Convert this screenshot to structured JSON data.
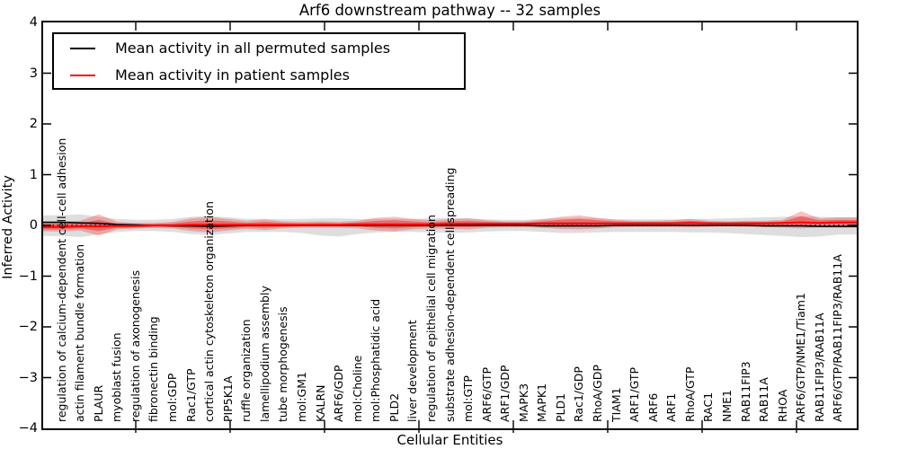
{
  "title": "Arf6 downstream pathway -- 32 samples",
  "legend": {
    "items": [
      {
        "label": "Mean activity in all permuted samples",
        "color": "#000000"
      },
      {
        "label": "Mean activity in patient samples",
        "color": "#ff0000"
      }
    ]
  },
  "axes": {
    "xlabel": "Cellular Entities",
    "ylabel": "Inferred Activity",
    "yticks": [
      "4",
      "3",
      "2",
      "1",
      "0",
      "−1",
      "−2",
      "−3",
      "−4"
    ]
  },
  "chart_data": {
    "type": "line",
    "title": "Arf6 downstream pathway -- 32 samples",
    "xlabel": "Cellular Entities",
    "ylabel": "Inferred Activity",
    "ylim": [
      -4,
      4
    ],
    "grid": false,
    "legend_position": "upper left",
    "zero_line": {
      "style": "dotted",
      "color": "#000000",
      "y": 0
    },
    "categories": [
      "regulation of calcium-dependent cell-cell adhesion",
      "actin filament bundle formation",
      "PLAUR",
      "myoblast fusion",
      "regulation of axonogenesis",
      "fibronectin binding",
      "mol:GDP",
      "Rac1/GTP",
      "cortical actin cytoskeleton organization",
      "PIP5K1A",
      "ruffle organization",
      "lamellipodium assembly",
      "tube morphogenesis",
      "mol:GM1",
      "KALRN",
      "ARF6/GDP",
      "mol:Choline",
      "mol:Phosphatidic acid",
      "PLD2",
      "liver development",
      "regulation of epithelial cell migration",
      "substrate adhesion-dependent cell spreading",
      "mol:GTP",
      "ARF6/GTP",
      "ARF1/GDP",
      "MAPK3",
      "MAPK1",
      "PLD1",
      "Rac1/GDP",
      "RhoA/GDP",
      "TIAM1",
      "ARF1/GTP",
      "ARF6",
      "ARF1",
      "RhoA/GTP",
      "RAC1",
      "NME1",
      "RAB11FIP3",
      "RAB11A",
      "RHOA",
      "ARF6/GTP/NME1/Tiam1",
      "RAB11FIP3/RAB11A",
      "ARF6/GTP/RAB11FIP3/RAB11A"
    ],
    "series": [
      {
        "name": "Mean activity in all permuted samples",
        "color": "#000000",
        "values": [
          0.06,
          0.05,
          0.04,
          0.02,
          0.01,
          0.0,
          -0.01,
          -0.01,
          -0.02,
          -0.01,
          0.0,
          0.0,
          0.0,
          0.0,
          0.0,
          0.0,
          0.0,
          0.0,
          0.0,
          0.0,
          0.0,
          0.0,
          0.0,
          0.0,
          0.0,
          0.0,
          -0.01,
          -0.01,
          -0.01,
          -0.01,
          0.0,
          0.0,
          0.0,
          0.0,
          0.0,
          0.0,
          0.0,
          0.0,
          -0.01,
          -0.01,
          -0.01,
          -0.02,
          -0.02
        ]
      },
      {
        "name": "Mean activity in patient samples",
        "color": "#ff0000",
        "values": [
          -0.03,
          -0.02,
          -0.02,
          -0.01,
          -0.01,
          0.0,
          0.0,
          0.01,
          0.01,
          0.01,
          0.01,
          0.01,
          0.01,
          0.01,
          0.01,
          0.01,
          0.02,
          0.02,
          0.02,
          0.02,
          0.02,
          0.03,
          0.03,
          0.03,
          0.03,
          0.03,
          0.04,
          0.04,
          0.04,
          0.04,
          0.04,
          0.04,
          0.04,
          0.04,
          0.05,
          0.04,
          0.04,
          0.04,
          0.04,
          0.05,
          0.06,
          0.05,
          0.06
        ]
      }
    ],
    "bands": [
      {
        "name": "permuted-samples-range",
        "color": "rgba(0,0,0,0.13)",
        "upper": [
          0.2,
          0.22,
          0.17,
          0.13,
          0.11,
          0.11,
          0.13,
          0.17,
          0.18,
          0.16,
          0.13,
          0.13,
          0.12,
          0.13,
          0.14,
          0.14,
          0.13,
          0.13,
          0.13,
          0.13,
          0.14,
          0.15,
          0.14,
          0.12,
          0.11,
          0.11,
          0.13,
          0.14,
          0.15,
          0.14,
          0.12,
          0.12,
          0.12,
          0.12,
          0.13,
          0.13,
          0.14,
          0.15,
          0.16,
          0.17,
          0.18,
          0.17,
          0.16
        ],
        "lower": [
          -0.21,
          -0.23,
          -0.18,
          -0.13,
          -0.11,
          -0.11,
          -0.13,
          -0.17,
          -0.19,
          -0.16,
          -0.13,
          -0.13,
          -0.13,
          -0.15,
          -0.2,
          -0.22,
          -0.17,
          -0.14,
          -0.13,
          -0.13,
          -0.14,
          -0.15,
          -0.14,
          -0.12,
          -0.11,
          -0.11,
          -0.13,
          -0.15,
          -0.15,
          -0.14,
          -0.13,
          -0.13,
          -0.13,
          -0.13,
          -0.14,
          -0.14,
          -0.15,
          -0.17,
          -0.19,
          -0.21,
          -0.23,
          -0.22,
          -0.18
        ]
      },
      {
        "name": "patient-samples-outer-range",
        "color": "rgba(255,0,0,0.25)",
        "upper": [
          0.08,
          0.09,
          0.22,
          0.07,
          0.05,
          0.05,
          0.07,
          0.14,
          0.17,
          0.13,
          0.09,
          0.12,
          0.08,
          0.07,
          0.08,
          0.07,
          0.09,
          0.15,
          0.17,
          0.13,
          0.1,
          0.12,
          0.14,
          0.1,
          0.08,
          0.08,
          0.12,
          0.17,
          0.2,
          0.15,
          0.11,
          0.09,
          0.09,
          0.1,
          0.13,
          0.09,
          0.08,
          0.09,
          0.09,
          0.11,
          0.28,
          0.14,
          0.16
        ],
        "lower": [
          -0.12,
          -0.1,
          -0.2,
          -0.08,
          -0.06,
          -0.05,
          -0.06,
          -0.11,
          -0.14,
          -0.1,
          -0.07,
          -0.09,
          -0.06,
          -0.05,
          -0.05,
          -0.05,
          -0.06,
          -0.1,
          -0.12,
          -0.08,
          -0.06,
          -0.07,
          -0.08,
          -0.05,
          -0.04,
          -0.04,
          -0.05,
          -0.07,
          -0.08,
          -0.06,
          -0.04,
          -0.03,
          -0.03,
          -0.03,
          -0.04,
          -0.03,
          -0.02,
          -0.03,
          -0.03,
          -0.04,
          -0.06,
          -0.04,
          -0.05
        ]
      },
      {
        "name": "patient-samples-inner-range",
        "color": "rgba(230,0,0,0.35)",
        "upper": [
          0.03,
          0.04,
          0.11,
          0.03,
          0.02,
          0.03,
          0.04,
          0.08,
          0.1,
          0.08,
          0.05,
          0.07,
          0.05,
          0.04,
          0.05,
          0.04,
          0.06,
          0.09,
          0.1,
          0.08,
          0.06,
          0.08,
          0.09,
          0.07,
          0.06,
          0.06,
          0.08,
          0.11,
          0.13,
          0.1,
          0.08,
          0.07,
          0.07,
          0.07,
          0.09,
          0.07,
          0.06,
          0.07,
          0.07,
          0.08,
          0.18,
          0.1,
          0.11
        ],
        "lower": [
          -0.08,
          -0.06,
          -0.11,
          -0.05,
          -0.04,
          -0.03,
          -0.03,
          -0.06,
          -0.08,
          -0.06,
          -0.04,
          -0.05,
          -0.03,
          -0.02,
          -0.02,
          -0.02,
          -0.02,
          -0.05,
          -0.06,
          -0.04,
          -0.02,
          -0.03,
          -0.03,
          -0.02,
          -0.01,
          -0.01,
          -0.01,
          -0.02,
          -0.02,
          -0.01,
          0.0,
          0.0,
          0.0,
          0.0,
          0.0,
          0.0,
          0.01,
          0.0,
          0.0,
          0.0,
          0.0,
          0.01,
          0.01
        ]
      }
    ]
  }
}
